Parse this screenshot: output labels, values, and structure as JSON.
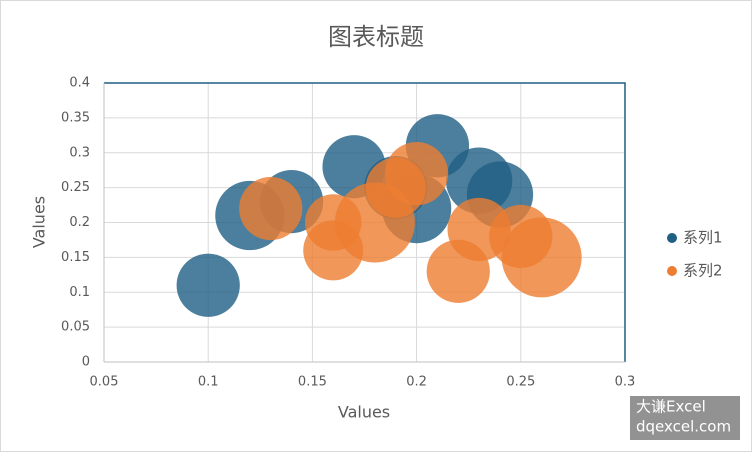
{
  "chart_data": {
    "type": "bubble",
    "title": "图表标题",
    "x_label": "Values",
    "y_label": "Values",
    "xlim": [
      0.05,
      0.3
    ],
    "xticks": [
      0.05,
      0.1,
      0.15,
      0.2,
      0.25,
      0.3
    ],
    "ylim": [
      0,
      0.4
    ],
    "yticks": [
      0,
      0.05,
      0.1,
      0.15,
      0.2,
      0.25,
      0.3,
      0.35,
      0.4
    ],
    "grid": true,
    "legend": "right",
    "series": [
      {
        "name": "系列1",
        "color": "#1f5f84",
        "x": [
          0.1,
          0.12,
          0.14,
          0.17,
          0.21,
          0.2,
          0.23,
          0.24,
          0.19
        ],
        "values": [
          0.11,
          0.21,
          0.23,
          0.28,
          0.31,
          0.22,
          0.26,
          0.24,
          0.25
        ],
        "sizes": [
          10,
          12,
          10,
          10,
          10,
          12,
          11,
          11,
          10
        ]
      },
      {
        "name": "系列2",
        "color": "#ed7d31",
        "x": [
          0.13,
          0.16,
          0.16,
          0.18,
          0.2,
          0.19,
          0.22,
          0.23,
          0.25,
          0.26
        ],
        "values": [
          0.22,
          0.2,
          0.16,
          0.2,
          0.27,
          0.25,
          0.13,
          0.19,
          0.18,
          0.15
        ],
        "sizes": [
          10,
          8,
          9,
          16,
          10,
          9,
          10,
          10,
          10,
          16
        ]
      }
    ]
  },
  "watermark": {
    "line1": "大谦Excel",
    "line2": "dqexcel.com"
  }
}
